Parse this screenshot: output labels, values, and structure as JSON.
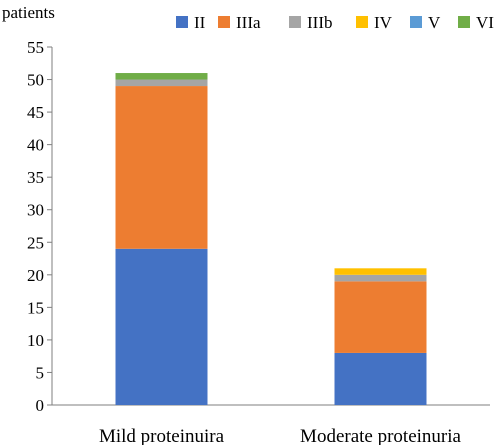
{
  "chart_data": {
    "type": "bar",
    "stacked": true,
    "ylabel": "patients",
    "xlabel": "",
    "title": "",
    "categories": [
      "Mild proteinuira",
      "Moderate proteinuria"
    ],
    "ylim": [
      0,
      55
    ],
    "yticks": [
      0,
      5,
      10,
      15,
      20,
      25,
      30,
      35,
      40,
      45,
      50,
      55
    ],
    "grid": false,
    "legend_position": "top",
    "series": [
      {
        "name": "II",
        "color": "#4472C4",
        "values": [
          24,
          8
        ]
      },
      {
        "name": "IIIa",
        "color": "#ED7D31",
        "values": [
          25,
          11
        ]
      },
      {
        "name": "IIIb",
        "color": "#A5A5A5",
        "values": [
          1,
          1
        ]
      },
      {
        "name": "IV",
        "color": "#FFC000",
        "values": [
          0,
          1
        ]
      },
      {
        "name": "V",
        "color": "#5B9BD5",
        "values": [
          0,
          0
        ]
      },
      {
        "name": "VI",
        "color": "#70AD47",
        "values": [
          1,
          0
        ]
      }
    ]
  }
}
